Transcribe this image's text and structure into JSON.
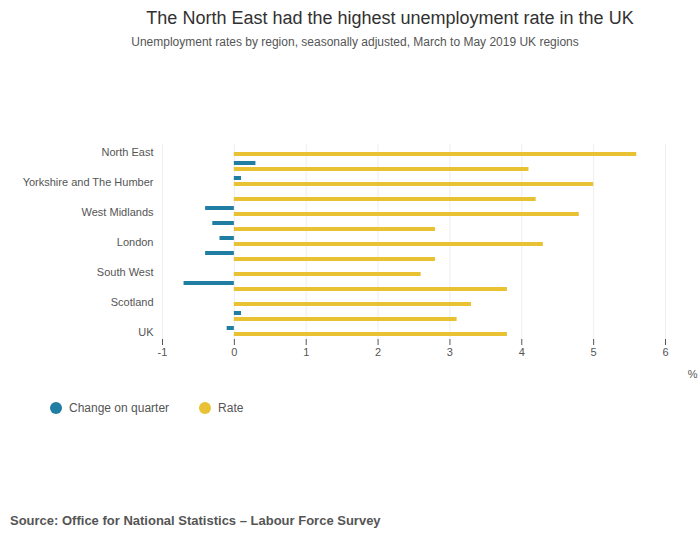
{
  "chart_data": {
    "type": "bar",
    "orientation": "horizontal",
    "title": "The North East had the highest unemployment rate in the UK",
    "subtitle": "Unemployment rates by region, seasonally adjusted, March to May 2019 UK regions",
    "source": "Source: Office for National Statistics – Labour Force Survey",
    "x_label": "%",
    "categories": [
      "North East",
      null,
      "Yorkshire and The Humber",
      null,
      "West Midlands",
      null,
      "London",
      null,
      "South West",
      null,
      "Scotland",
      null,
      "UK"
    ],
    "series": [
      {
        "name": "Change on quarter",
        "color": "#1f7ea1",
        "values": [
          0.0,
          0.3,
          0.1,
          0.0,
          -0.4,
          -0.3,
          -0.2,
          -0.4,
          0.0,
          -0.7,
          0.0,
          0.1,
          -0.1
        ]
      },
      {
        "name": "Rate",
        "color": "#e8c232",
        "values": [
          5.6,
          4.1,
          5.0,
          4.2,
          4.8,
          2.8,
          4.3,
          2.8,
          2.6,
          3.8,
          3.3,
          3.1,
          3.8
        ]
      }
    ],
    "xlim": [
      -1,
      6
    ],
    "xticks": [
      -1,
      0,
      1,
      2,
      3,
      4,
      5,
      6
    ],
    "grid": true,
    "legend": "bottom"
  }
}
